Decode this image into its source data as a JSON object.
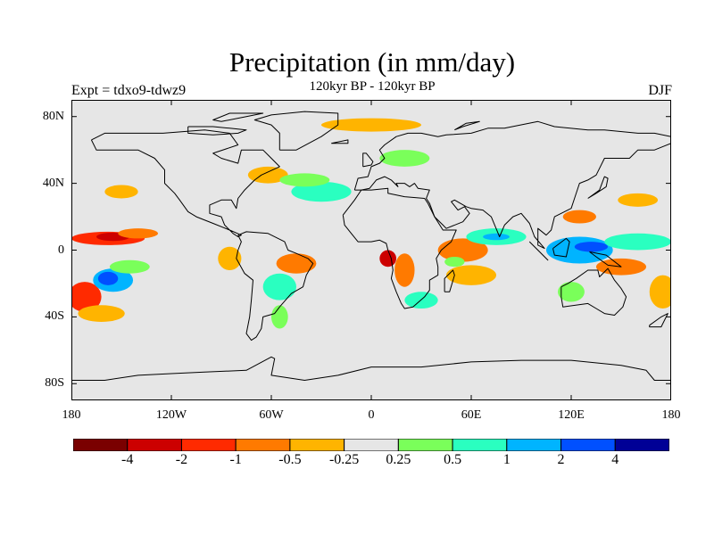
{
  "title": "Precipitation (in mm/day)",
  "subtitle": "120kyr BP - 120kyr BP",
  "experiment_label": "Expt = tdxo9-tdwz9",
  "season": "DJF",
  "map": {
    "background_color": "#e6e6e6",
    "coastline_color": "#000000",
    "lat_ticks": [
      {
        "lat": 80,
        "label": "80N"
      },
      {
        "lat": 40,
        "label": "40N"
      },
      {
        "lat": 0,
        "label": "0"
      },
      {
        "lat": -40,
        "label": "40S"
      },
      {
        "lat": -80,
        "label": "80S"
      }
    ],
    "lon_ticks": [
      {
        "lon": -180,
        "label": "180"
      },
      {
        "lon": -120,
        "label": "120W"
      },
      {
        "lon": -60,
        "label": "60W"
      },
      {
        "lon": 0,
        "label": "0"
      },
      {
        "lon": 60,
        "label": "60E"
      },
      {
        "lon": 120,
        "label": "120E"
      },
      {
        "lon": 180,
        "label": "180"
      }
    ]
  },
  "colorbar": {
    "colors": [
      "#7a0000",
      "#cc0000",
      "#ff2a00",
      "#ff7a00",
      "#ffb400",
      "#e6e6e6",
      "#7aff5a",
      "#2affc0",
      "#00b4ff",
      "#0050ff",
      "#000096"
    ],
    "labels": [
      "-4",
      "-2",
      "-1",
      "-0.5",
      "-0.25",
      "0.25",
      "0.5",
      "1",
      "2",
      "4"
    ]
  },
  "anomalies": [
    {
      "lon": -158,
      "lat": 7,
      "rx": 22,
      "ry": 4,
      "color": "#ff2a00"
    },
    {
      "lon": -155,
      "lat": 8,
      "rx": 10,
      "ry": 2.5,
      "color": "#cc0000"
    },
    {
      "lon": -140,
      "lat": 10,
      "rx": 12,
      "ry": 3,
      "color": "#ff7a00"
    },
    {
      "lon": -172,
      "lat": -28,
      "rx": 10,
      "ry": 9,
      "color": "#ff2a00"
    },
    {
      "lon": -162,
      "lat": -38,
      "rx": 14,
      "ry": 5,
      "color": "#ffb400"
    },
    {
      "lon": -155,
      "lat": -18,
      "rx": 12,
      "ry": 7,
      "color": "#00b4ff"
    },
    {
      "lon": -158,
      "lat": -17,
      "rx": 6,
      "ry": 4,
      "color": "#0050ff"
    },
    {
      "lon": -145,
      "lat": -10,
      "rx": 12,
      "ry": 4,
      "color": "#7aff5a"
    },
    {
      "lon": -150,
      "lat": 35,
      "rx": 10,
      "ry": 4,
      "color": "#ffb400"
    },
    {
      "lon": -85,
      "lat": -5,
      "rx": 7,
      "ry": 7,
      "color": "#ffb400"
    },
    {
      "lon": -45,
      "lat": -8,
      "rx": 12,
      "ry": 6,
      "color": "#ff7a00"
    },
    {
      "lon": -55,
      "lat": -22,
      "rx": 10,
      "ry": 8,
      "color": "#2affc0"
    },
    {
      "lon": -55,
      "lat": -40,
      "rx": 5,
      "ry": 7,
      "color": "#7aff5a"
    },
    {
      "lon": -62,
      "lat": 45,
      "rx": 12,
      "ry": 5,
      "color": "#ffb400"
    },
    {
      "lon": -30,
      "lat": 35,
      "rx": 18,
      "ry": 6,
      "color": "#2affc0"
    },
    {
      "lon": -40,
      "lat": 42,
      "rx": 15,
      "ry": 4,
      "color": "#7aff5a"
    },
    {
      "lon": 0,
      "lat": 75,
      "rx": 30,
      "ry": 4,
      "color": "#ffb400"
    },
    {
      "lon": 20,
      "lat": 55,
      "rx": 15,
      "ry": 5,
      "color": "#7aff5a"
    },
    {
      "lon": 55,
      "lat": 0,
      "rx": 15,
      "ry": 7,
      "color": "#ff7a00"
    },
    {
      "lon": 75,
      "lat": 8,
      "rx": 18,
      "ry": 5,
      "color": "#2affc0"
    },
    {
      "lon": 75,
      "lat": 8,
      "rx": 8,
      "ry": 2,
      "color": "#00b4ff"
    },
    {
      "lon": 60,
      "lat": -15,
      "rx": 15,
      "ry": 6,
      "color": "#ffb400"
    },
    {
      "lon": 50,
      "lat": -7,
      "rx": 6,
      "ry": 3,
      "color": "#7aff5a"
    },
    {
      "lon": 125,
      "lat": 0,
      "rx": 20,
      "ry": 8,
      "color": "#00b4ff"
    },
    {
      "lon": 132,
      "lat": 2,
      "rx": 10,
      "ry": 3,
      "color": "#0050ff"
    },
    {
      "lon": 160,
      "lat": 5,
      "rx": 20,
      "ry": 5,
      "color": "#2affc0"
    },
    {
      "lon": 150,
      "lat": -10,
      "rx": 15,
      "ry": 5,
      "color": "#ff7a00"
    },
    {
      "lon": 175,
      "lat": -25,
      "rx": 8,
      "ry": 10,
      "color": "#ffb400"
    },
    {
      "lon": 120,
      "lat": -25,
      "rx": 8,
      "ry": 6,
      "color": "#7aff5a"
    },
    {
      "lon": 20,
      "lat": -12,
      "rx": 6,
      "ry": 10,
      "color": "#ff7a00"
    },
    {
      "lon": 30,
      "lat": -30,
      "rx": 10,
      "ry": 5,
      "color": "#2affc0"
    },
    {
      "lon": 10,
      "lat": -5,
      "rx": 5,
      "ry": 5,
      "color": "#cc0000"
    },
    {
      "lon": 125,
      "lat": 20,
      "rx": 10,
      "ry": 4,
      "color": "#ff7a00"
    },
    {
      "lon": 160,
      "lat": 30,
      "rx": 12,
      "ry": 4,
      "color": "#ffb400"
    }
  ],
  "coastlines": [
    [
      [
        -168,
        66
      ],
      [
        -160,
        70
      ],
      [
        -140,
        70
      ],
      [
        -125,
        70
      ],
      [
        -100,
        72
      ],
      [
        -85,
        70
      ],
      [
        -80,
        63
      ],
      [
        -95,
        58
      ],
      [
        -90,
        55
      ],
      [
        -80,
        52
      ],
      [
        -78,
        60
      ],
      [
        -65,
        60
      ],
      [
        -60,
        55
      ],
      [
        -55,
        50
      ],
      [
        -66,
        45
      ],
      [
        -70,
        42
      ],
      [
        -76,
        36
      ],
      [
        -80,
        31
      ],
      [
        -81,
        25
      ],
      [
        -84,
        30
      ],
      [
        -90,
        30
      ],
      [
        -97,
        27
      ],
      [
        -97,
        22
      ],
      [
        -90,
        20
      ],
      [
        -88,
        15
      ],
      [
        -83,
        10
      ],
      [
        -80,
        8
      ],
      [
        -78,
        9
      ],
      [
        -85,
        12
      ],
      [
        -95,
        16
      ],
      [
        -105,
        20
      ],
      [
        -110,
        23
      ],
      [
        -115,
        30
      ],
      [
        -118,
        34
      ],
      [
        -124,
        40
      ],
      [
        -124,
        48
      ],
      [
        -130,
        55
      ],
      [
        -140,
        60
      ],
      [
        -152,
        60
      ],
      [
        -165,
        60
      ],
      [
        -168,
        66
      ]
    ],
    [
      [
        -80,
        9
      ],
      [
        -75,
        11
      ],
      [
        -62,
        10
      ],
      [
        -52,
        5
      ],
      [
        -50,
        0
      ],
      [
        -45,
        -2
      ],
      [
        -38,
        -5
      ],
      [
        -35,
        -8
      ],
      [
        -39,
        -15
      ],
      [
        -41,
        -22
      ],
      [
        -48,
        -26
      ],
      [
        -55,
        -34
      ],
      [
        -58,
        -38
      ],
      [
        -65,
        -40
      ],
      [
        -66,
        -47
      ],
      [
        -69,
        -52
      ],
      [
        -72,
        -54
      ],
      [
        -75,
        -50
      ],
      [
        -73,
        -40
      ],
      [
        -72,
        -30
      ],
      [
        -71,
        -18
      ],
      [
        -76,
        -14
      ],
      [
        -81,
        -5
      ],
      [
        -80,
        0
      ],
      [
        -78,
        5
      ],
      [
        -80,
        9
      ]
    ],
    [
      [
        -55,
        60
      ],
      [
        -45,
        60
      ],
      [
        -30,
        68
      ],
      [
        -20,
        75
      ],
      [
        -20,
        82
      ],
      [
        -40,
        83
      ],
      [
        -60,
        81
      ],
      [
        -70,
        78
      ],
      [
        -60,
        75
      ],
      [
        -55,
        70
      ],
      [
        -55,
        60
      ]
    ],
    [
      [
        -10,
        36
      ],
      [
        -8,
        43
      ],
      [
        -2,
        44
      ],
      [
        0,
        50
      ],
      [
        5,
        52
      ],
      [
        8,
        55
      ],
      [
        5,
        60
      ],
      [
        8,
        63
      ],
      [
        15,
        68
      ],
      [
        22,
        70
      ],
      [
        30,
        70
      ],
      [
        40,
        68
      ],
      [
        45,
        69
      ],
      [
        60,
        70
      ],
      [
        70,
        73
      ],
      [
        80,
        73
      ],
      [
        100,
        77
      ],
      [
        110,
        74
      ],
      [
        130,
        72
      ],
      [
        140,
        72
      ],
      [
        160,
        70
      ],
      [
        170,
        70
      ],
      [
        180,
        68
      ],
      [
        180,
        64
      ],
      [
        170,
        60
      ],
      [
        160,
        60
      ],
      [
        155,
        55
      ],
      [
        140,
        55
      ],
      [
        135,
        45
      ],
      [
        130,
        42
      ],
      [
        125,
        40
      ],
      [
        122,
        31
      ],
      [
        120,
        25
      ],
      [
        110,
        20
      ],
      [
        108,
        12
      ],
      [
        105,
        9
      ],
      [
        100,
        13
      ],
      [
        100,
        3
      ],
      [
        104,
        1
      ],
      [
        98,
        8
      ],
      [
        95,
        16
      ],
      [
        90,
        22
      ],
      [
        85,
        20
      ],
      [
        80,
        15
      ],
      [
        77,
        8
      ],
      [
        72,
        20
      ],
      [
        67,
        24
      ],
      [
        60,
        25
      ],
      [
        57,
        26
      ],
      [
        50,
        30
      ],
      [
        48,
        29
      ],
      [
        52,
        24
      ],
      [
        56,
        26
      ],
      [
        59,
        22
      ],
      [
        55,
        17
      ],
      [
        45,
        13
      ],
      [
        43,
        15
      ],
      [
        38,
        20
      ],
      [
        35,
        28
      ],
      [
        33,
        31
      ],
      [
        35,
        36
      ],
      [
        28,
        37
      ],
      [
        26,
        40
      ],
      [
        23,
        38
      ],
      [
        20,
        40
      ],
      [
        15,
        40
      ],
      [
        16,
        38
      ],
      [
        12,
        42
      ],
      [
        8,
        44
      ],
      [
        3,
        42
      ],
      [
        -1,
        37
      ],
      [
        -6,
        36
      ],
      [
        -10,
        36
      ]
    ],
    [
      [
        -17,
        21
      ],
      [
        -16,
        15
      ],
      [
        -12,
        10
      ],
      [
        -8,
        5
      ],
      [
        0,
        5
      ],
      [
        5,
        6
      ],
      [
        9,
        4
      ],
      [
        10,
        0
      ],
      [
        12,
        -5
      ],
      [
        13,
        -12
      ],
      [
        12,
        -17
      ],
      [
        15,
        -25
      ],
      [
        18,
        -32
      ],
      [
        20,
        -35
      ],
      [
        25,
        -34
      ],
      [
        32,
        -28
      ],
      [
        35,
        -24
      ],
      [
        35,
        -18
      ],
      [
        40,
        -15
      ],
      [
        40,
        -10
      ],
      [
        39,
        -5
      ],
      [
        42,
        0
      ],
      [
        48,
        5
      ],
      [
        51,
        12
      ],
      [
        43,
        12
      ],
      [
        38,
        20
      ],
      [
        34,
        28
      ],
      [
        32,
        31
      ],
      [
        20,
        32
      ],
      [
        10,
        34
      ],
      [
        10,
        37
      ],
      [
        0,
        36
      ],
      [
        -6,
        36
      ],
      [
        -10,
        30
      ],
      [
        -17,
        21
      ]
    ],
    [
      [
        114,
        -22
      ],
      [
        118,
        -20
      ],
      [
        123,
        -17
      ],
      [
        130,
        -12
      ],
      [
        136,
        -12
      ],
      [
        137,
        -16
      ],
      [
        142,
        -11
      ],
      [
        146,
        -18
      ],
      [
        150,
        -23
      ],
      [
        153,
        -28
      ],
      [
        151,
        -34
      ],
      [
        146,
        -39
      ],
      [
        140,
        -38
      ],
      [
        135,
        -35
      ],
      [
        130,
        -32
      ],
      [
        115,
        -34
      ],
      [
        114,
        -28
      ],
      [
        114,
        -22
      ]
    ],
    [
      [
        44,
        -25
      ],
      [
        47,
        -25
      ],
      [
        50,
        -15
      ],
      [
        49,
        -12
      ],
      [
        44,
        -17
      ],
      [
        44,
        -25
      ]
    ],
    [
      [
        -5,
        50
      ],
      [
        0,
        51
      ],
      [
        1,
        53
      ],
      [
        -3,
        58
      ],
      [
        -5,
        58
      ],
      [
        -5,
        50
      ]
    ],
    [
      [
        130,
        31
      ],
      [
        135,
        34
      ],
      [
        141,
        38
      ],
      [
        142,
        43
      ],
      [
        140,
        44
      ],
      [
        137,
        36
      ],
      [
        130,
        31
      ]
    ],
    [
      [
        95,
        5
      ],
      [
        105,
        -5
      ],
      [
        106,
        -6
      ],
      [
        100,
        0
      ],
      [
        95,
        5
      ]
    ],
    [
      [
        109,
        1
      ],
      [
        117,
        7
      ],
      [
        119,
        5
      ],
      [
        117,
        -4
      ],
      [
        110,
        -3
      ],
      [
        109,
        1
      ]
    ],
    [
      [
        131,
        -1
      ],
      [
        141,
        -3
      ],
      [
        150,
        -10
      ],
      [
        142,
        -9
      ],
      [
        135,
        -4
      ],
      [
        131,
        -1
      ]
    ],
    [
      [
        167,
        -45
      ],
      [
        174,
        -40
      ],
      [
        178,
        -38
      ],
      [
        174,
        -46
      ],
      [
        167,
        -46
      ],
      [
        167,
        -45
      ]
    ],
    [
      [
        -24,
        64
      ],
      [
        -14,
        66
      ],
      [
        -14,
        64
      ],
      [
        -24,
        64
      ]
    ],
    [
      [
        -180,
        -78
      ],
      [
        -160,
        -78
      ],
      [
        -140,
        -75
      ],
      [
        -120,
        -74
      ],
      [
        -100,
        -73
      ],
      [
        -75,
        -72
      ],
      [
        -60,
        -64
      ],
      [
        -58,
        -65
      ],
      [
        -60,
        -75
      ],
      [
        -40,
        -78
      ],
      [
        -20,
        -75
      ],
      [
        0,
        -70
      ],
      [
        30,
        -70
      ],
      [
        60,
        -67
      ],
      [
        90,
        -66
      ],
      [
        120,
        -66
      ],
      [
        150,
        -69
      ],
      [
        165,
        -72
      ],
      [
        170,
        -78
      ],
      [
        180,
        -78
      ]
    ],
    [
      [
        -110,
        74
      ],
      [
        -95,
        74
      ],
      [
        -85,
        73
      ],
      [
        -75,
        72
      ],
      [
        -80,
        70
      ],
      [
        -95,
        69
      ],
      [
        -110,
        70
      ],
      [
        -110,
        74
      ]
    ],
    [
      [
        -90,
        77
      ],
      [
        -75,
        80
      ],
      [
        -65,
        82
      ],
      [
        -85,
        82
      ],
      [
        -95,
        78
      ],
      [
        -90,
        77
      ]
    ],
    [
      [
        50,
        72
      ],
      [
        57,
        76
      ],
      [
        65,
        77
      ],
      [
        55,
        74
      ],
      [
        50,
        72
      ]
    ]
  ]
}
